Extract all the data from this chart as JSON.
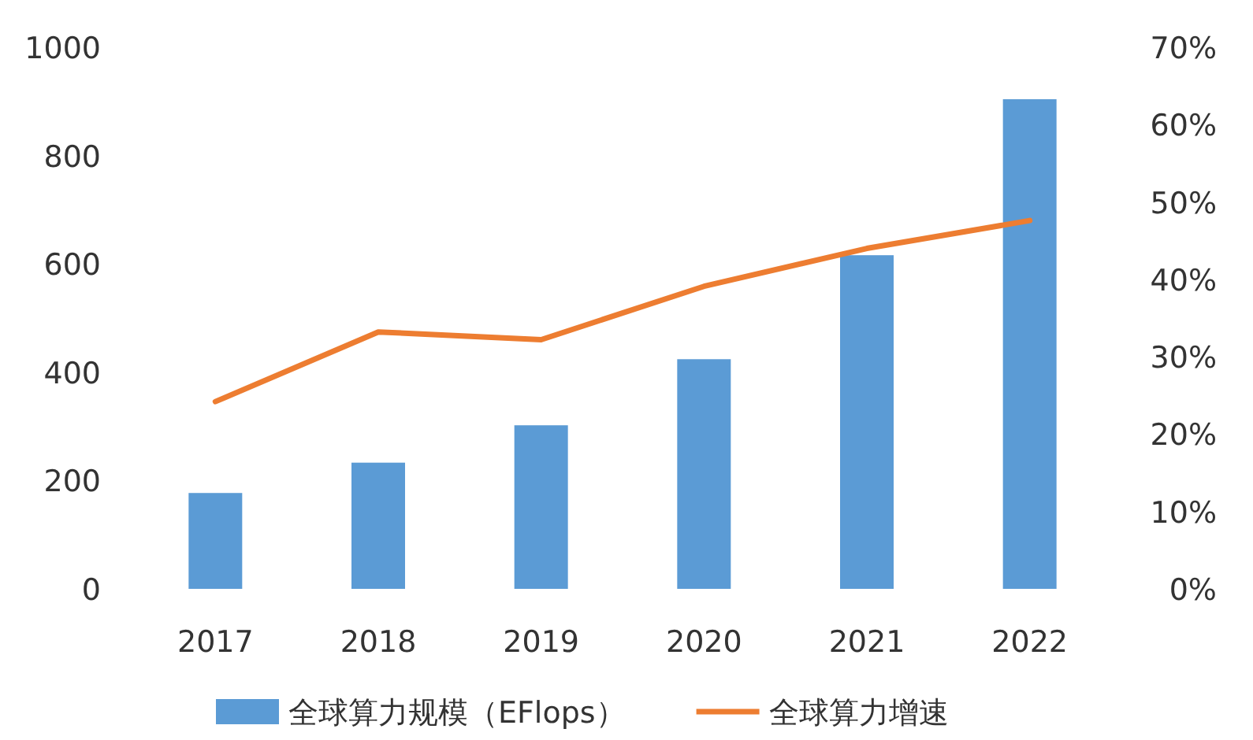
{
  "chart_data": {
    "type": "bar",
    "categories": [
      "2017",
      "2018",
      "2019",
      "2020",
      "2021",
      "2022"
    ],
    "series": [
      {
        "name": "全球算力规模（EFlops）",
        "color": "#5b9bd5",
        "values": [
          177,
          233,
          302,
          424,
          616,
          904
        ]
      },
      {
        "name": "全球算力增速",
        "type": "line",
        "axis": "y2",
        "color": "#ed7d31",
        "values": [
          24.2,
          33.2,
          32.2,
          39.1,
          44.0,
          47.6
        ]
      }
    ],
    "ylim": [
      0,
      1000
    ],
    "yticks": [
      0,
      200,
      400,
      600,
      800,
      1000
    ],
    "y2lim": [
      0,
      70
    ],
    "y2ticks": [
      {
        "value": 0,
        "label": "0%"
      },
      {
        "value": 10,
        "label": "10%"
      },
      {
        "value": 20,
        "label": "20%"
      },
      {
        "value": 30,
        "label": "30%"
      },
      {
        "value": 40,
        "label": "40%"
      },
      {
        "value": 50,
        "label": "50%"
      },
      {
        "value": 60,
        "label": "60%"
      },
      {
        "value": 70,
        "label": "70%"
      }
    ],
    "grid": false,
    "legend": "bottom",
    "marker": "none",
    "line_style": "solid"
  }
}
